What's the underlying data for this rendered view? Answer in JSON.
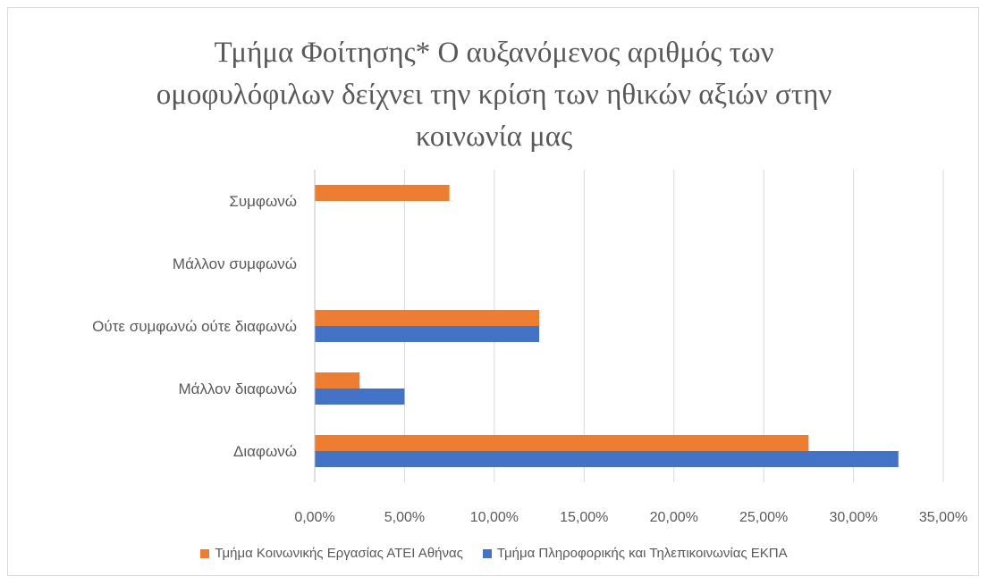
{
  "chart_data": {
    "type": "bar",
    "orientation": "horizontal",
    "title_lines": [
      "Τμήμα Φοίτησης* Ο αυξανόμενος αριθμός των",
      "ομοφυλόφιλων δείχνει την κρίση των ηθικών αξιών στην",
      "κοινωνία μας"
    ],
    "categories": [
      "Συμφωνώ",
      "Μάλλον συμφωνώ",
      "Ούτε συμφωνώ ούτε διαφωνώ",
      "Μάλλον διαφωνώ",
      "Διαφωνώ"
    ],
    "series": [
      {
        "name": "Τμήμα Κοινωνικής Εργασίας ΑΤΕΙ Αθήνας",
        "color": "#ed7d31",
        "values": [
          7.5,
          0,
          12.5,
          2.5,
          27.5
        ]
      },
      {
        "name": "Τμήμα Πληροφορικής και Τηλεπικοινωνίας ΕΚΠΑ",
        "color": "#4472c4",
        "values": [
          0,
          0,
          12.5,
          5.0,
          32.5
        ]
      }
    ],
    "xlim": [
      0,
      35
    ],
    "x_ticks": [
      0,
      5,
      10,
      15,
      20,
      25,
      30,
      35
    ],
    "x_tick_labels": [
      "0,00%",
      "5,00%",
      "10,00%",
      "15,00%",
      "20,00%",
      "25,00%",
      "30,00%",
      "35,00%"
    ],
    "grid": "vertical",
    "legend_position": "bottom"
  }
}
